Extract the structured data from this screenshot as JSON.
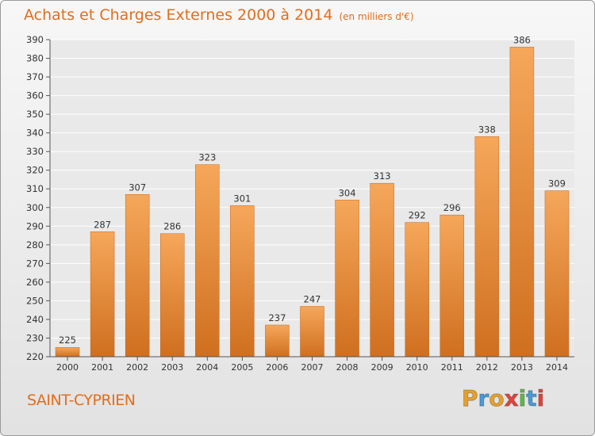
{
  "header": {
    "title": "Achats et Charges Externes 2000 à 2014",
    "subtitle": "(en milliers d'€)"
  },
  "footer": {
    "town": "SAINT-CYPRIEN",
    "logo": "Proxiti"
  },
  "colors": {
    "bar_light": "#f6a75a",
    "bar_dark": "#cf6f1f",
    "title": "#e06e1d",
    "logo_letters": [
      "#e8a02a",
      "#4a9ad8",
      "#e8a02a",
      "#e0453c",
      "#5fb84a",
      "#4a9ad8",
      "#e0453c"
    ]
  },
  "chart_data": {
    "type": "bar",
    "title": "Achats et Charges Externes 2000 à 2014",
    "categories": [
      "2000",
      "2001",
      "2002",
      "2003",
      "2004",
      "2005",
      "2006",
      "2007",
      "2008",
      "2009",
      "2010",
      "2011",
      "2012",
      "2013",
      "2014"
    ],
    "values": [
      225,
      287,
      307,
      286,
      323,
      301,
      237,
      247,
      304,
      313,
      292,
      296,
      338,
      386,
      309
    ],
    "ylim": [
      220,
      390
    ],
    "yticks": [
      220,
      230,
      240,
      250,
      260,
      270,
      280,
      290,
      300,
      310,
      320,
      330,
      340,
      350,
      360,
      370,
      380,
      390
    ],
    "grid": true,
    "xlabel": "",
    "ylabel": ""
  }
}
